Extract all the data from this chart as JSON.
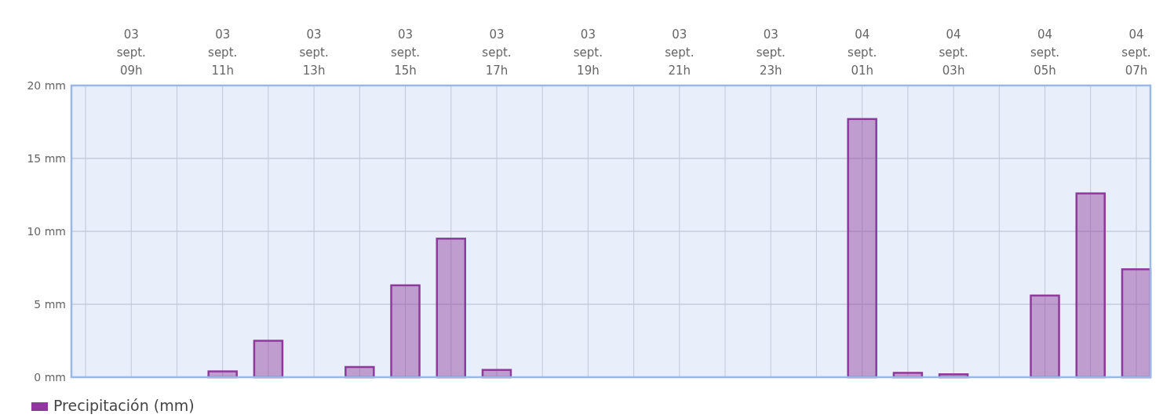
{
  "chart_data": {
    "type": "bar",
    "categories": [
      null,
      "03\nsept.\n09h",
      null,
      "03\nsept.\n11h",
      null,
      "03\nsept.\n13h",
      null,
      "03\nsept.\n15h",
      null,
      "03\nsept.\n17h",
      null,
      "03\nsept.\n19h",
      null,
      "03\nsept.\n21h",
      null,
      "03\nsept.\n23h",
      null,
      "04\nsept.\n01h",
      null,
      "04\nsept.\n03h",
      null,
      "04\nsept.\n05h",
      null,
      "04\nsept.\n07h"
    ],
    "series": [
      {
        "name": "Precipitación (mm)",
        "color": "#8e3a9c",
        "values": [
          0,
          0,
          0,
          0.4,
          2.5,
          0,
          0.7,
          6.3,
          9.5,
          0.5,
          0,
          0,
          0,
          0,
          0,
          0,
          0,
          17.7,
          0.3,
          0.2,
          0,
          5.6,
          12.6,
          7.4
        ]
      }
    ],
    "ylim": [
      0,
      20
    ],
    "yticks": [
      {
        "value": 0,
        "label": "0 mm"
      },
      {
        "value": 5,
        "label": "5 mm"
      },
      {
        "value": 10,
        "label": "10 mm"
      },
      {
        "value": 15,
        "label": "15 mm"
      },
      {
        "value": 20,
        "label": "20 mm"
      }
    ],
    "grid": true,
    "legend": "bottom left"
  }
}
